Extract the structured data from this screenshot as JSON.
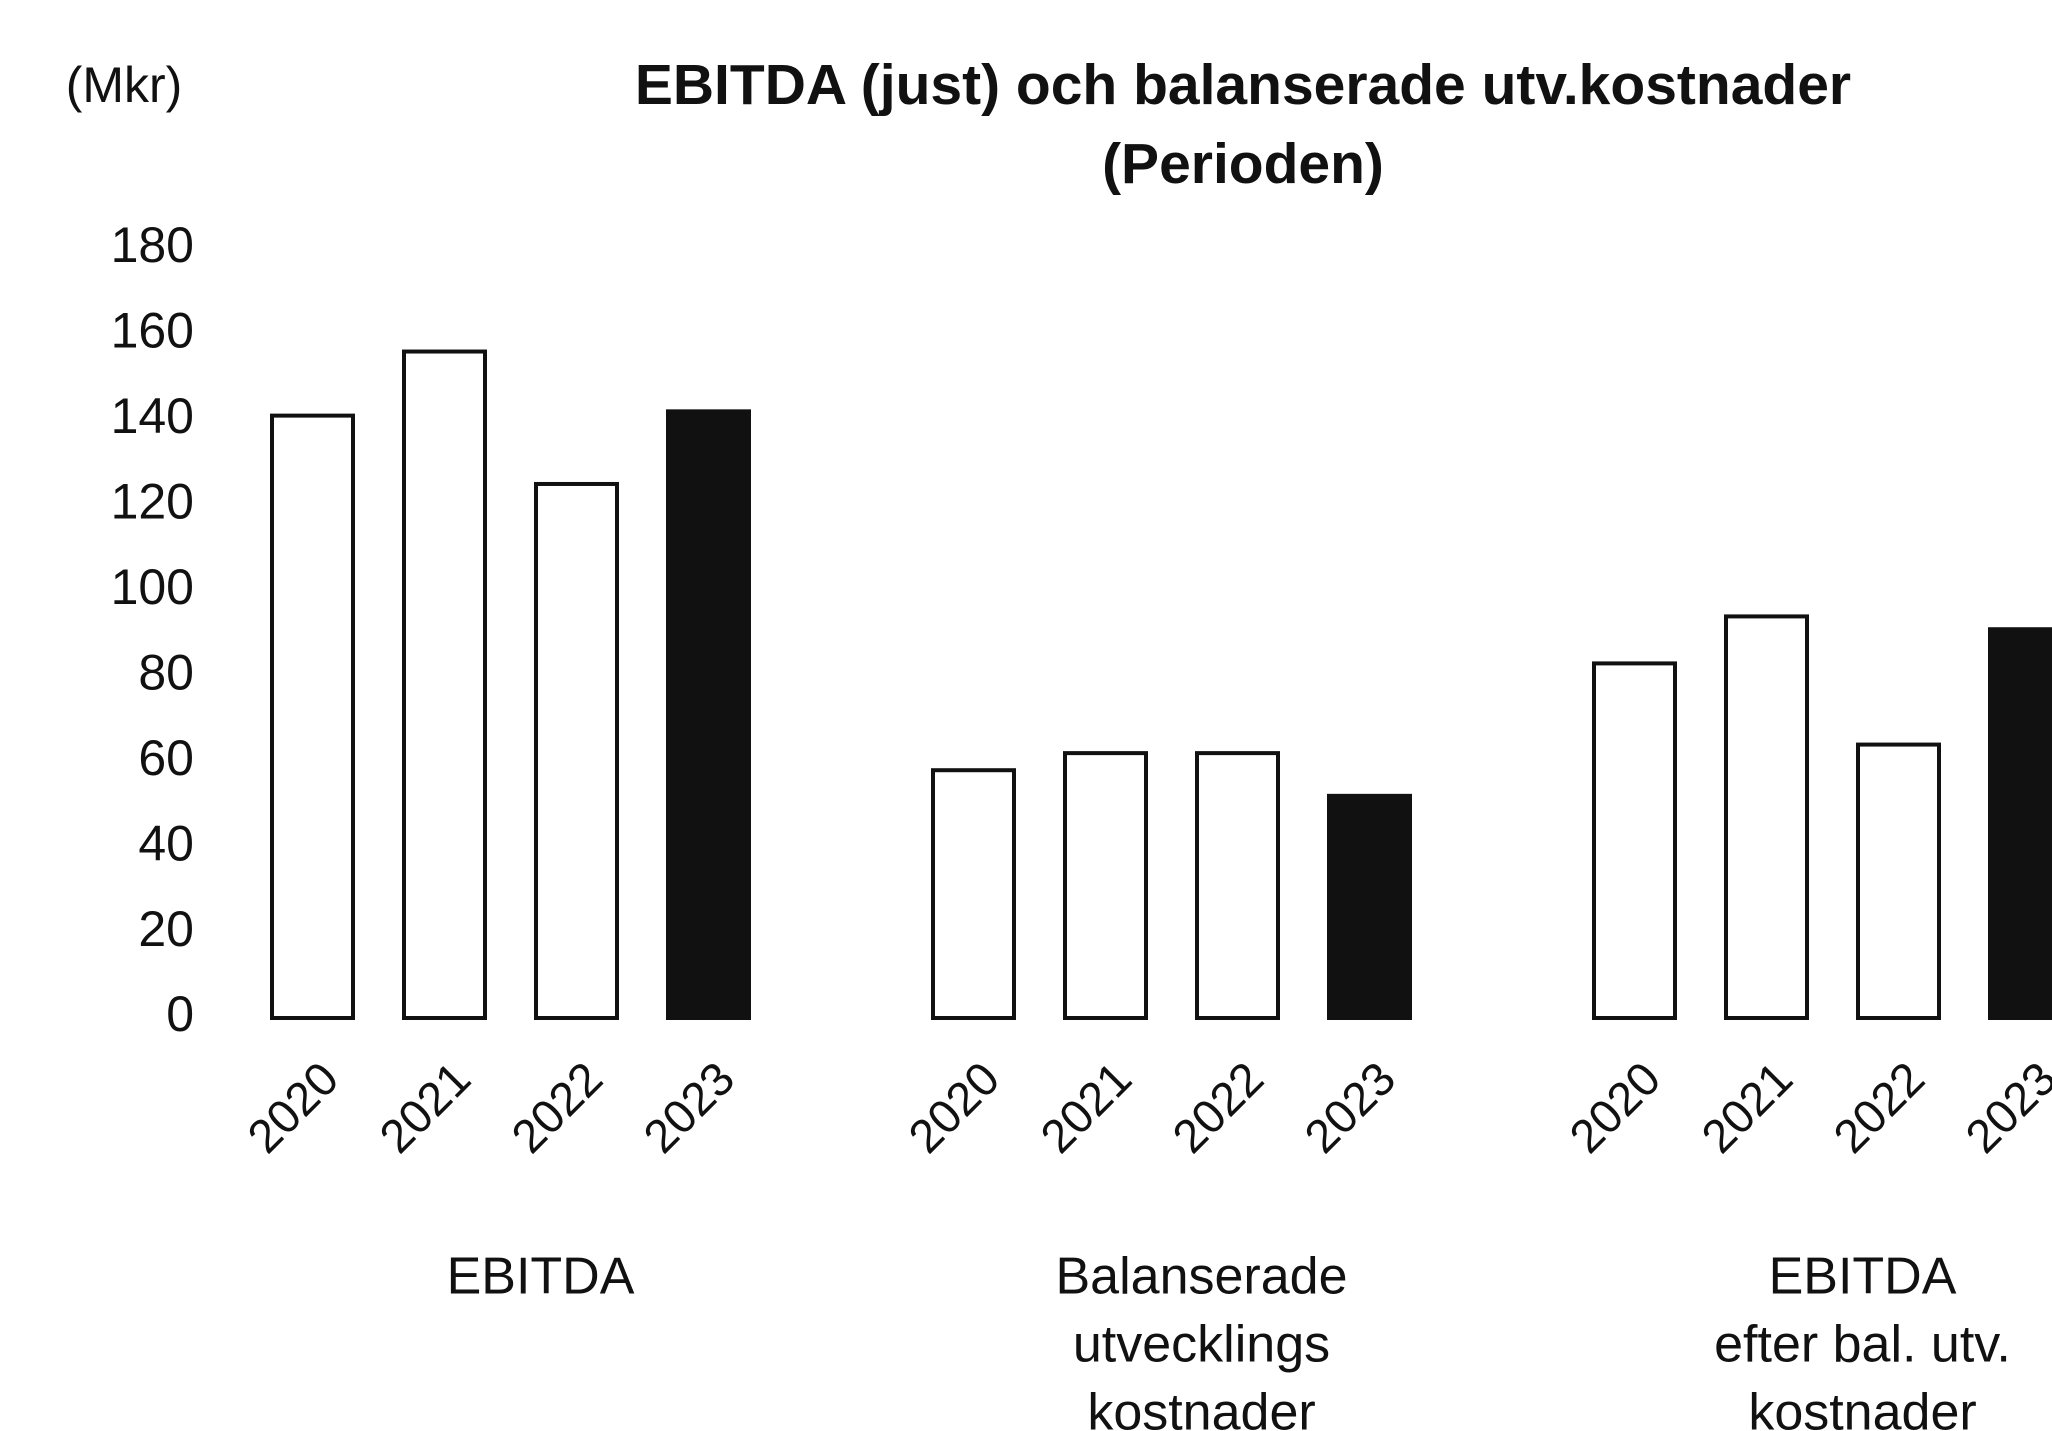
{
  "chart_data": {
    "type": "bar",
    "title": [
      "EBITDA (just) och balanserade utv.kostnader",
      "(Perioden)"
    ],
    "y_axis_label": "(Mkr)",
    "categories": [
      [
        "EBITDA"
      ],
      [
        "Balanserade",
        "utvecklings",
        "kostnader"
      ],
      [
        "EBITDA",
        "efter bal. utv.",
        "kostnader"
      ]
    ],
    "series": [
      {
        "name": "2020",
        "color": "#ffffff",
        "values": [
          141,
          58,
          83
        ]
      },
      {
        "name": "2021",
        "color": "#ffffff",
        "values": [
          156,
          62,
          94
        ]
      },
      {
        "name": "2022",
        "color": "#ffffff",
        "values": [
          125,
          62,
          64
        ]
      },
      {
        "name": "2023",
        "color": "#111111",
        "values": [
          142,
          52,
          91
        ]
      }
    ],
    "ylim": [
      0,
      180
    ],
    "yticks": [
      0,
      20,
      40,
      60,
      80,
      100,
      120,
      140,
      160,
      180
    ],
    "grid": false
  }
}
